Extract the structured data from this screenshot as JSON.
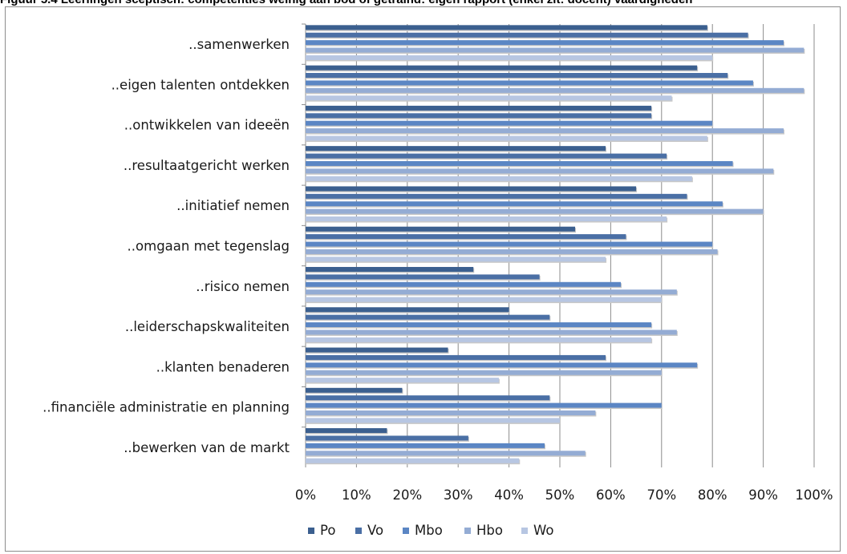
{
  "page_title": "Figuur 5.4 Leerlingen sceptisch: competenties weinig aan bod of getraind: eigen rapport (enkel zit: docent) vaardigheden",
  "chart_data": {
    "type": "bar",
    "orientation": "horizontal",
    "title": "",
    "xlabel": "",
    "ylabel": "",
    "xlim": [
      0,
      100
    ],
    "x_ticks": [
      "0%",
      "10%",
      "20%",
      "30%",
      "40%",
      "50%",
      "60%",
      "70%",
      "80%",
      "90%",
      "100%"
    ],
    "grid": true,
    "legend_position": "bottom",
    "categories": [
      "..samenwerken",
      "..eigen talenten ontdekken",
      "..ontwikkelen van ideeën",
      "..resultaatgericht werken",
      "..initiatief nemen",
      "..omgaan met tegenslag",
      "..risico nemen",
      "..leiderschapskwaliteiten",
      "..klanten benaderen",
      "..financiële administratie en planning",
      "..bewerken van de markt"
    ],
    "series": [
      {
        "name": "Po",
        "color": "#3b5f8f",
        "values": [
          79,
          77,
          68,
          59,
          65,
          53,
          33,
          40,
          28,
          19,
          16
        ]
      },
      {
        "name": "Vo",
        "color": "#4a6fa5",
        "values": [
          87,
          83,
          68,
          71,
          75,
          63,
          46,
          48,
          59,
          48,
          32
        ]
      },
      {
        "name": "Mbo",
        "color": "#5b86c4",
        "values": [
          94,
          88,
          80,
          84,
          82,
          80,
          62,
          68,
          77,
          70,
          47
        ]
      },
      {
        "name": "Hbo",
        "color": "#94acd4",
        "values": [
          98,
          98,
          94,
          92,
          90,
          81,
          73,
          73,
          70,
          57,
          55
        ]
      },
      {
        "name": "Wo",
        "color": "#b7c6e2",
        "values": [
          80,
          72,
          79,
          76,
          71,
          59,
          70,
          68,
          38,
          50,
          42
        ]
      }
    ]
  }
}
